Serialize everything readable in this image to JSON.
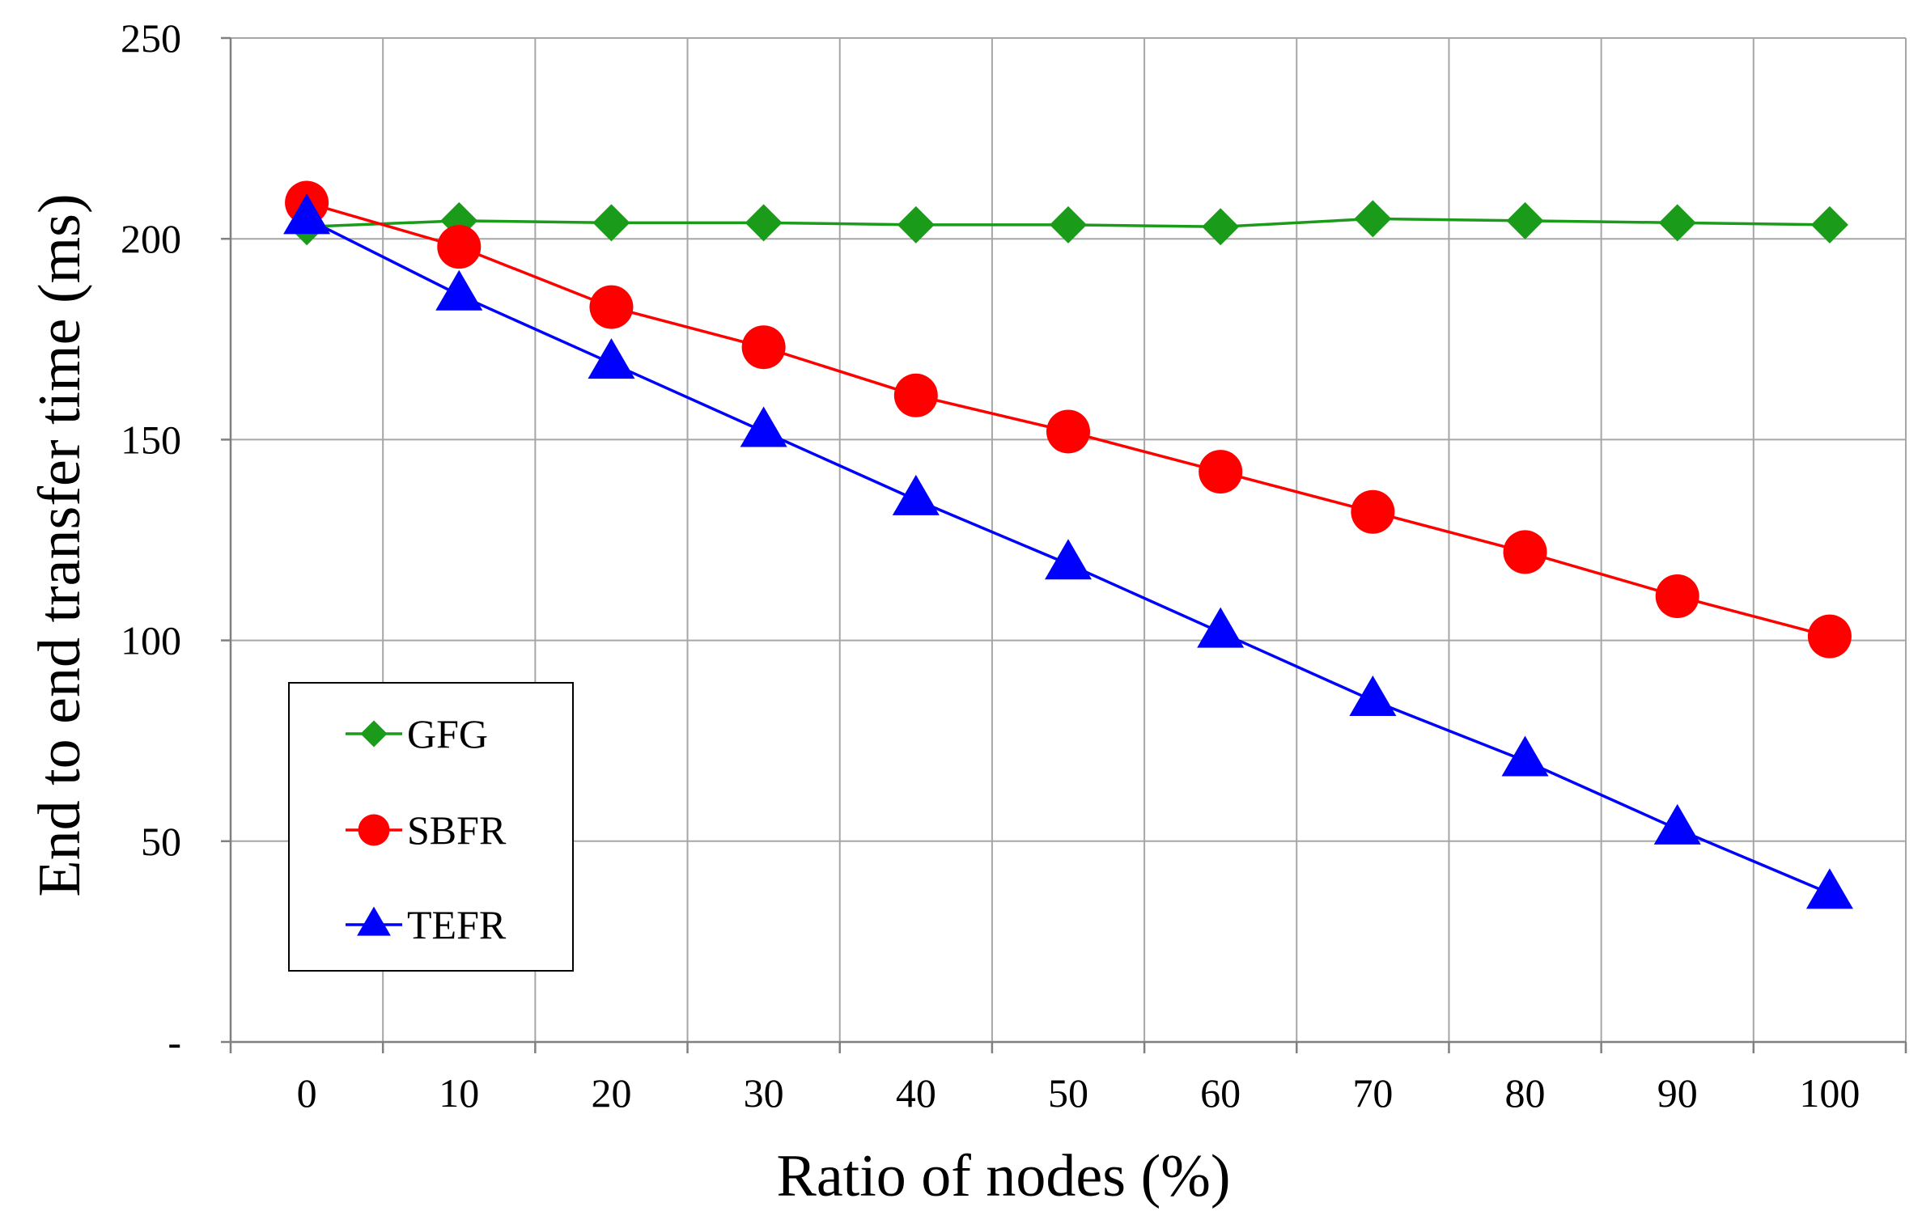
{
  "chart_data": {
    "type": "line",
    "title": "",
    "xlabel": "Ratio of nodes (%)",
    "ylabel": "End to end transfer time (ms)",
    "categories": [
      "0",
      "10",
      "20",
      "30",
      "40",
      "50",
      "60",
      "70",
      "80",
      "90",
      "100"
    ],
    "ylim": [
      0,
      250
    ],
    "yticks": [
      {
        "value": 0,
        "label": "-"
      },
      {
        "value": 50,
        "label": "50"
      },
      {
        "value": 100,
        "label": "100"
      },
      {
        "value": 150,
        "label": "150"
      },
      {
        "value": 200,
        "label": "200"
      },
      {
        "value": 250,
        "label": "250"
      }
    ],
    "grid": true,
    "legend_position": "bottom-left",
    "series": [
      {
        "name": "GFG",
        "color": "#1a9b1a",
        "marker": "diamond",
        "values": [
          203,
          204.5,
          204,
          204,
          203.5,
          203.5,
          203,
          205,
          204.5,
          204,
          203.5
        ]
      },
      {
        "name": "SBFR",
        "color": "#ff0000",
        "marker": "circle",
        "values": [
          209,
          198,
          183,
          173,
          161,
          152,
          142,
          132,
          122,
          111,
          101
        ]
      },
      {
        "name": "TEFR",
        "color": "#0000ff",
        "marker": "triangle",
        "values": [
          205,
          186,
          169,
          152,
          135,
          119,
          102,
          85,
          70,
          53,
          37
        ]
      }
    ]
  }
}
